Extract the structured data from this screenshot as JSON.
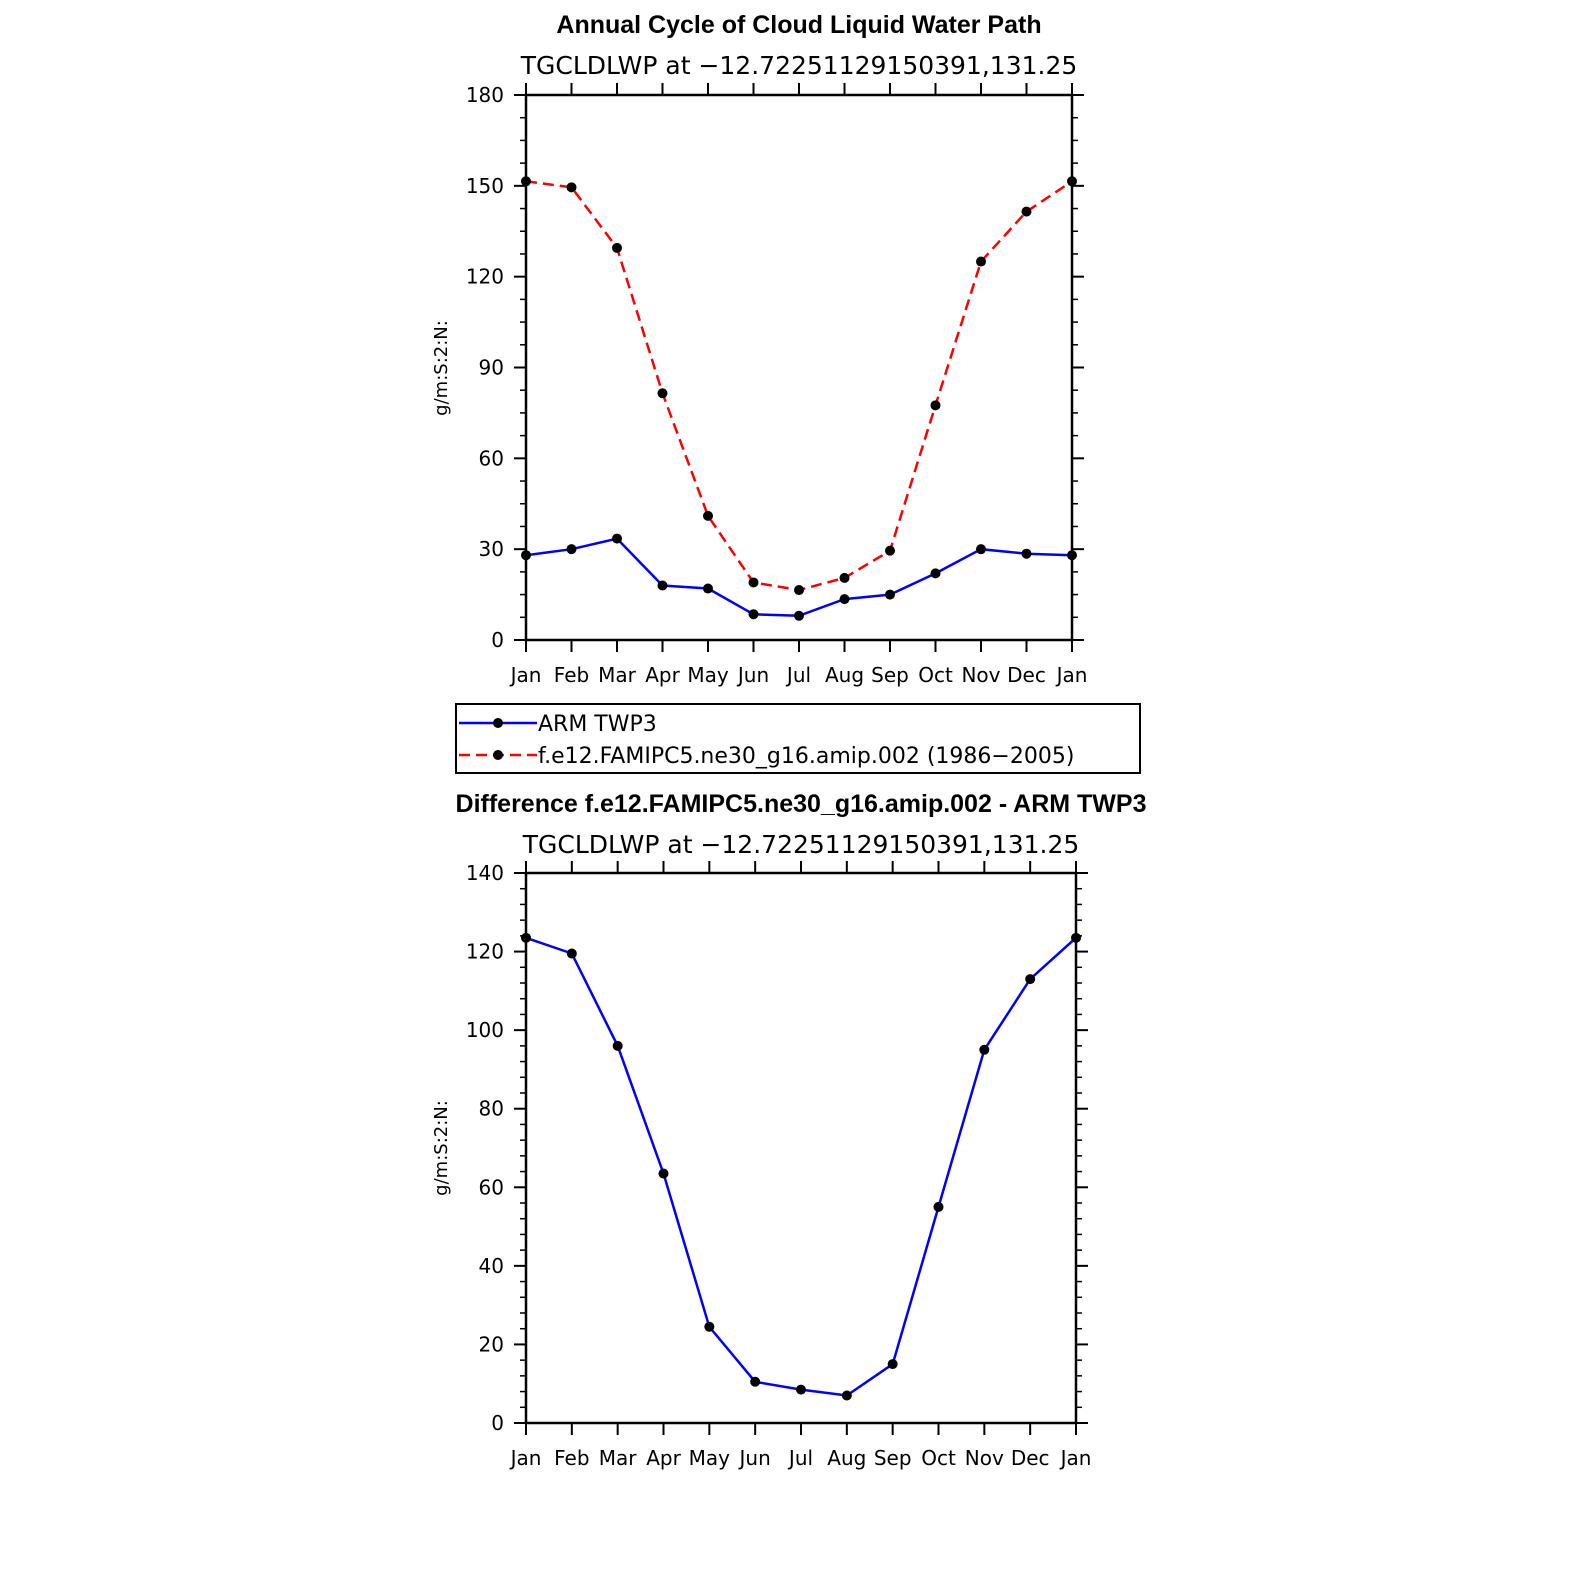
{
  "chart_data": [
    {
      "type": "line",
      "title": "Annual Cycle of Cloud Liquid Water Path",
      "subtitle": "TGCLDLWP at −12.72251129150391,131.25",
      "xlabel": "",
      "ylabel": "g/m:S:2:N:",
      "categories": [
        "Jan",
        "Feb",
        "Mar",
        "Apr",
        "May",
        "Jun",
        "Jul",
        "Aug",
        "Sep",
        "Oct",
        "Nov",
        "Dec",
        "Jan"
      ],
      "yticks": [
        "0",
        "30",
        "60",
        "90",
        "120",
        "150",
        "180"
      ],
      "ylim": [
        0,
        180
      ],
      "grid": false,
      "legend": "below",
      "series": [
        {
          "name": "ARM TWP3",
          "color": "#0000ff",
          "dash": "solid",
          "values": [
            28,
            30,
            33.5,
            18,
            17,
            8.5,
            8,
            13.5,
            15,
            22,
            30,
            28.5,
            28
          ]
        },
        {
          "name": "f.e12.FAMIPC5.ne30_g16.amip.002 (1986−2005)",
          "color": "#ff0000",
          "dash": "dashed",
          "values": [
            151.5,
            149.5,
            129.5,
            81.5,
            41,
            19,
            16.5,
            20.5,
            29.5,
            77.5,
            125,
            141.5,
            151.5
          ]
        }
      ]
    },
    {
      "type": "line",
      "title": "Difference f.e12.FAMIPC5.ne30_g16.amip.002 - ARM TWP3",
      "subtitle": "TGCLDLWP at −12.72251129150391,131.25",
      "xlabel": "",
      "ylabel": "g/m:S:2:N:",
      "categories": [
        "Jan",
        "Feb",
        "Mar",
        "Apr",
        "May",
        "Jun",
        "Jul",
        "Aug",
        "Sep",
        "Oct",
        "Nov",
        "Dec",
        "Jan"
      ],
      "yticks": [
        "0",
        "20",
        "40",
        "60",
        "80",
        "100",
        "120",
        "140"
      ],
      "ylim": [
        0,
        140
      ],
      "grid": false,
      "series": [
        {
          "color": "#0000ff",
          "dash": "solid",
          "values": [
            123.5,
            119.5,
            96,
            63.5,
            24.5,
            10.5,
            8.5,
            7,
            15,
            55,
            95,
            113,
            123.5
          ]
        }
      ]
    }
  ]
}
